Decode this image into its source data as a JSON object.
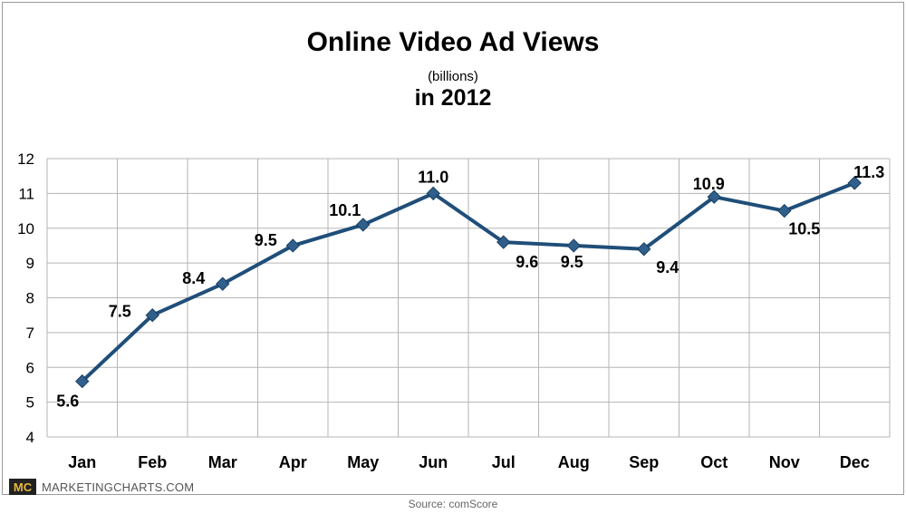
{
  "chart_data": {
    "type": "line",
    "title": "Online Video Ad Views",
    "subtitle": "(billions)",
    "subtitle2": "in 2012",
    "categories": [
      "Jan",
      "Feb",
      "Mar",
      "Apr",
      "May",
      "Jun",
      "Jul",
      "Aug",
      "Sep",
      "Oct",
      "Nov",
      "Dec"
    ],
    "series": [
      {
        "values": [
          5.6,
          7.5,
          8.4,
          9.5,
          10.1,
          11.0,
          9.6,
          9.5,
          9.4,
          10.9,
          10.5,
          11.3
        ]
      }
    ],
    "data_labels": [
      "5.6",
      "7.5",
      "8.4",
      "9.5",
      "10.1",
      "11.0",
      "9.6",
      "9.5",
      "9.4",
      "10.9",
      "10.5",
      "11.3"
    ],
    "ylim": [
      4,
      12
    ],
    "yticks": [
      4,
      5,
      6,
      7,
      8,
      9,
      10,
      11,
      12
    ],
    "grid": true,
    "legend": "none",
    "line_color": "#1f4e79",
    "grid_color": "#b5b5b5"
  },
  "branding": {
    "logo": "MC",
    "name": "MARKETINGCHARTS.COM"
  },
  "source": "Source:  comScore"
}
